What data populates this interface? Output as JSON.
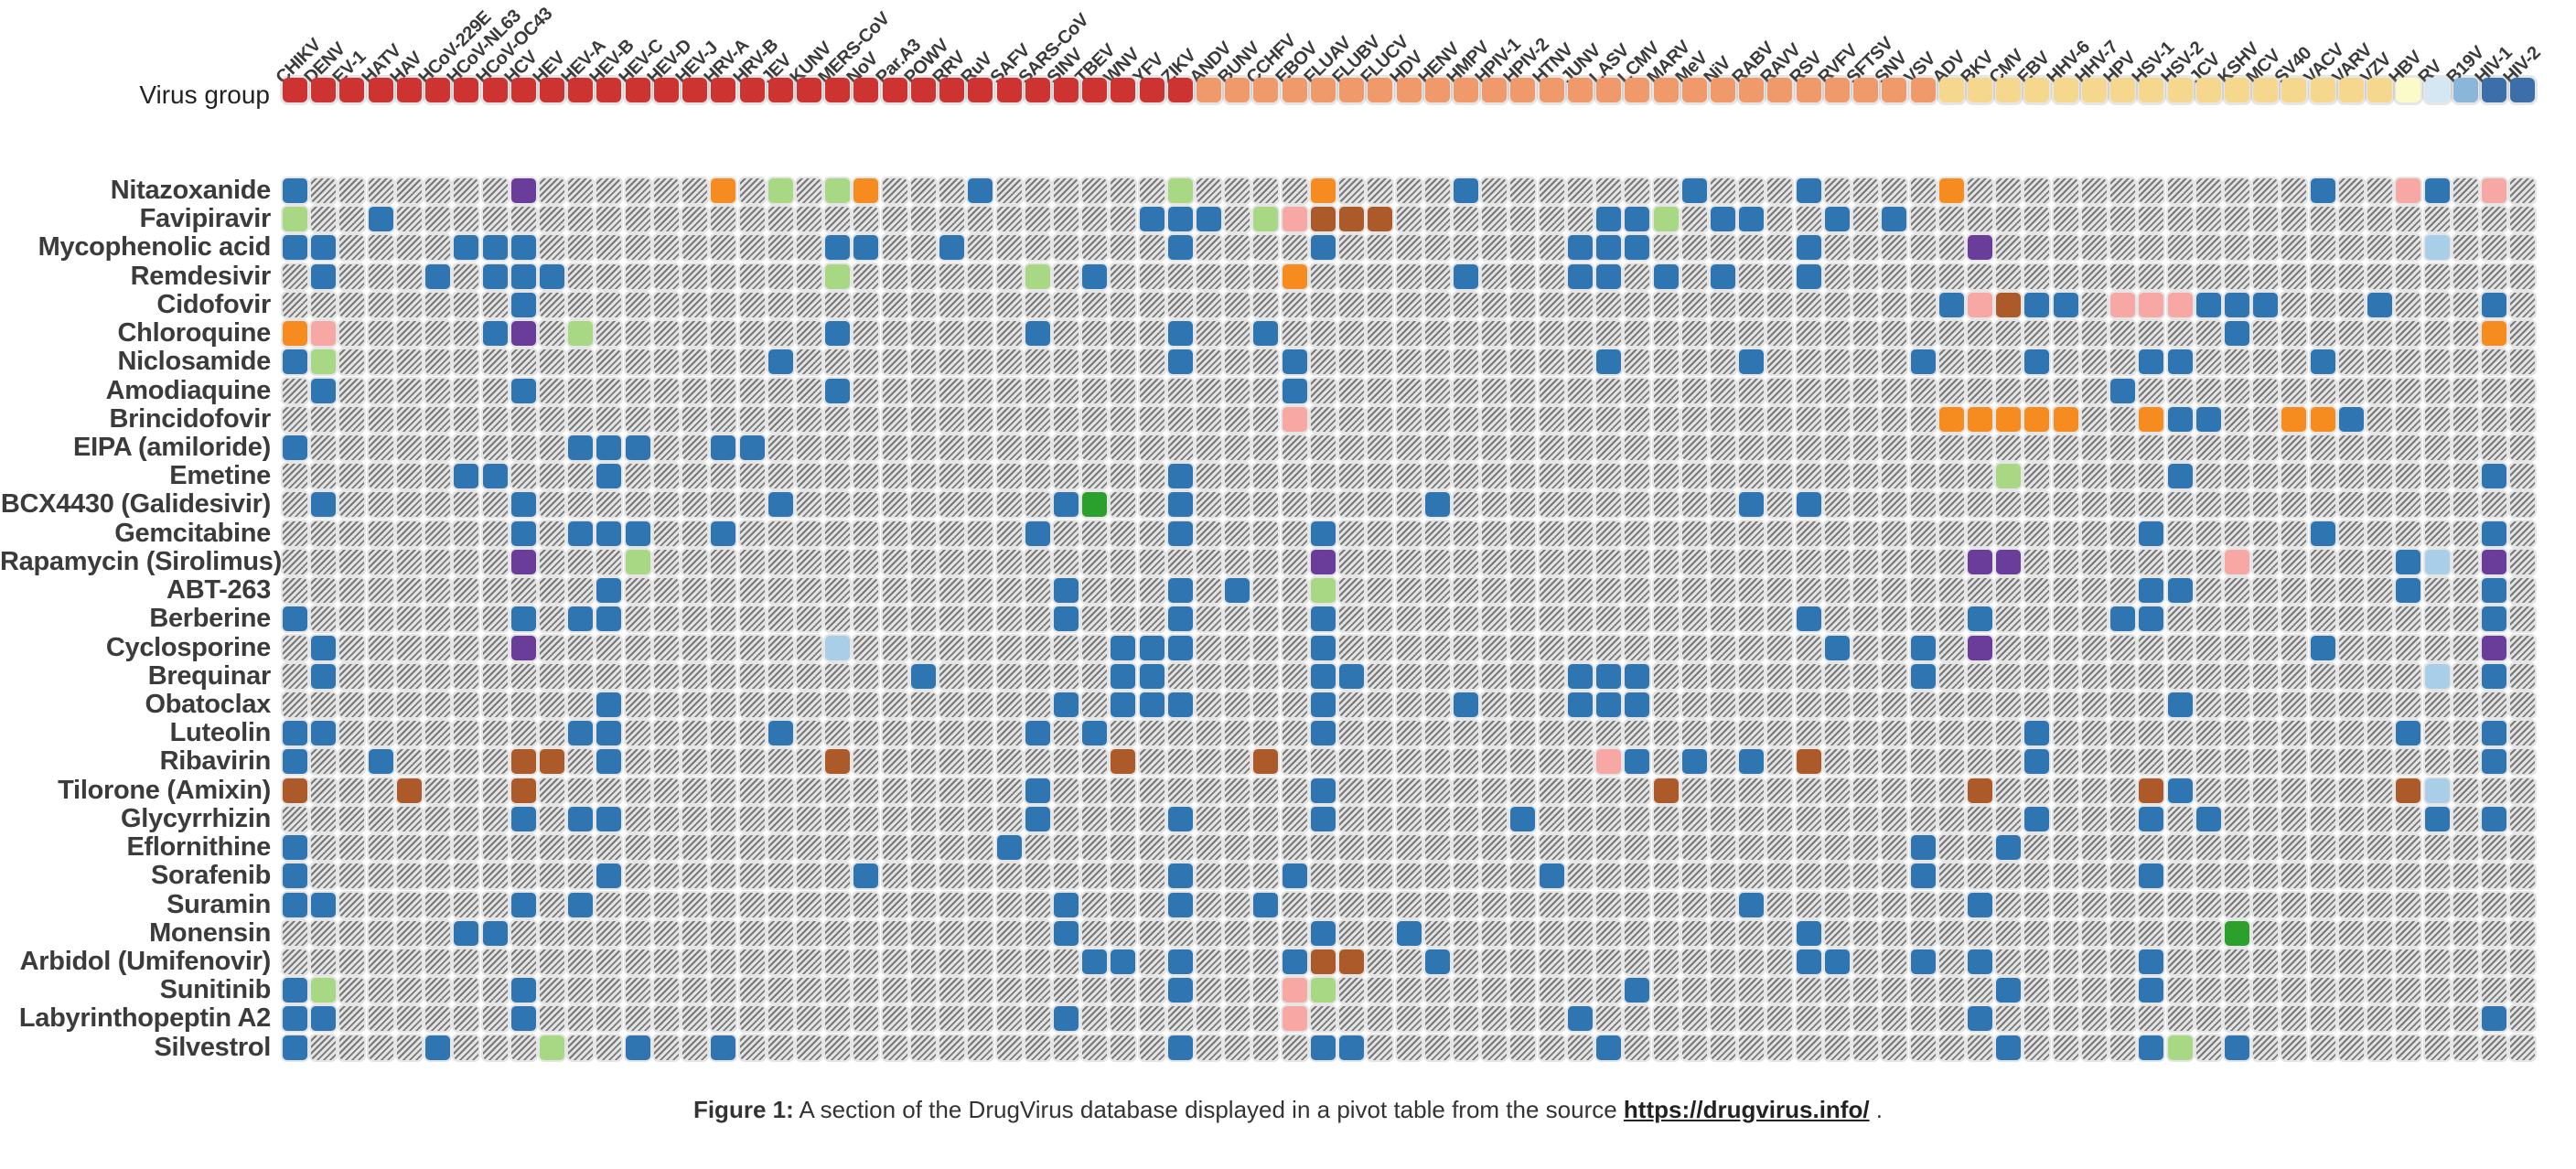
{
  "virus_group_label": "Virus group",
  "virus_group_colors": {
    "ssrna_pos": "#cd3431",
    "ssrna_neg": "#f0996b",
    "dsdna": "#f6d78e",
    "hbv_group": "#fafbc8",
    "rv_group": "#d5e7f2",
    "b19v_group": "#8ab6d9",
    "hiv_group": "#3c6fa9"
  },
  "cell_colors": {
    "B": "#2e75b1",
    "G": "#a8d884",
    "E": "#2ca02c",
    "O": "#f68b1f",
    "R": "#ad5a2b",
    "P": "#6a3d9a",
    "K": "#f7a8a4",
    "L": "#a9cfe8"
  },
  "columns": [
    {
      "label": "CHIKV",
      "group": "ssrna_pos"
    },
    {
      "label": "DENV",
      "group": "ssrna_pos"
    },
    {
      "label": "EV-1",
      "group": "ssrna_pos"
    },
    {
      "label": "HATV",
      "group": "ssrna_pos"
    },
    {
      "label": "HAV",
      "group": "ssrna_pos"
    },
    {
      "label": "HCoV-229E",
      "group": "ssrna_pos"
    },
    {
      "label": "HCoV-NL63",
      "group": "ssrna_pos"
    },
    {
      "label": "HCoV-OC43",
      "group": "ssrna_pos"
    },
    {
      "label": "HCV",
      "group": "ssrna_pos"
    },
    {
      "label": "HEV",
      "group": "ssrna_pos"
    },
    {
      "label": "HEV-A",
      "group": "ssrna_pos"
    },
    {
      "label": "HEV-B",
      "group": "ssrna_pos"
    },
    {
      "label": "HEV-C",
      "group": "ssrna_pos"
    },
    {
      "label": "HEV-D",
      "group": "ssrna_pos"
    },
    {
      "label": "HEV-J",
      "group": "ssrna_pos"
    },
    {
      "label": "HRV-A",
      "group": "ssrna_pos"
    },
    {
      "label": "HRV-B",
      "group": "ssrna_pos"
    },
    {
      "label": "JEV",
      "group": "ssrna_pos"
    },
    {
      "label": "KUNV",
      "group": "ssrna_pos"
    },
    {
      "label": "MERS-CoV",
      "group": "ssrna_pos"
    },
    {
      "label": "NoV",
      "group": "ssrna_pos"
    },
    {
      "label": "Par.A3",
      "group": "ssrna_pos"
    },
    {
      "label": "POWV",
      "group": "ssrna_pos"
    },
    {
      "label": "RRV",
      "group": "ssrna_pos"
    },
    {
      "label": "RuV",
      "group": "ssrna_pos"
    },
    {
      "label": "SAFV",
      "group": "ssrna_pos"
    },
    {
      "label": "SARS-CoV",
      "group": "ssrna_pos"
    },
    {
      "label": "SINV",
      "group": "ssrna_pos"
    },
    {
      "label": "TBEV",
      "group": "ssrna_pos"
    },
    {
      "label": "WNV",
      "group": "ssrna_pos"
    },
    {
      "label": "YFV",
      "group": "ssrna_pos"
    },
    {
      "label": "ZIKV",
      "group": "ssrna_pos"
    },
    {
      "label": "ANDV",
      "group": "ssrna_neg"
    },
    {
      "label": "BUNV",
      "group": "ssrna_neg"
    },
    {
      "label": "CCHFV",
      "group": "ssrna_neg"
    },
    {
      "label": "EBOV",
      "group": "ssrna_neg"
    },
    {
      "label": "FLUAV",
      "group": "ssrna_neg"
    },
    {
      "label": "FLUBV",
      "group": "ssrna_neg"
    },
    {
      "label": "FLUCV",
      "group": "ssrna_neg"
    },
    {
      "label": "HDV",
      "group": "ssrna_neg"
    },
    {
      "label": "HENV",
      "group": "ssrna_neg"
    },
    {
      "label": "HMPV",
      "group": "ssrna_neg"
    },
    {
      "label": "HPIV-1",
      "group": "ssrna_neg"
    },
    {
      "label": "HPIV-2",
      "group": "ssrna_neg"
    },
    {
      "label": "HTNV",
      "group": "ssrna_neg"
    },
    {
      "label": "JUNV",
      "group": "ssrna_neg"
    },
    {
      "label": "LASV",
      "group": "ssrna_neg"
    },
    {
      "label": "LCMV",
      "group": "ssrna_neg"
    },
    {
      "label": "MARV",
      "group": "ssrna_neg"
    },
    {
      "label": "MeV",
      "group": "ssrna_neg"
    },
    {
      "label": "NiV",
      "group": "ssrna_neg"
    },
    {
      "label": "RABV",
      "group": "ssrna_neg"
    },
    {
      "label": "RAVV",
      "group": "ssrna_neg"
    },
    {
      "label": "RSV",
      "group": "ssrna_neg"
    },
    {
      "label": "RVFV",
      "group": "ssrna_neg"
    },
    {
      "label": "SFTSV",
      "group": "ssrna_neg"
    },
    {
      "label": "SNV",
      "group": "ssrna_neg"
    },
    {
      "label": "VSV",
      "group": "ssrna_neg"
    },
    {
      "label": "ADV",
      "group": "dsdna"
    },
    {
      "label": "BKV",
      "group": "dsdna"
    },
    {
      "label": "CMV",
      "group": "dsdna"
    },
    {
      "label": "EBV",
      "group": "dsdna"
    },
    {
      "label": "HHV-6",
      "group": "dsdna"
    },
    {
      "label": "HHV-7",
      "group": "dsdna"
    },
    {
      "label": "HPV",
      "group": "dsdna"
    },
    {
      "label": "HSV-1",
      "group": "dsdna"
    },
    {
      "label": "HSV-2",
      "group": "dsdna"
    },
    {
      "label": "JCV",
      "group": "dsdna"
    },
    {
      "label": "KSHV",
      "group": "dsdna"
    },
    {
      "label": "MCV",
      "group": "dsdna"
    },
    {
      "label": "SV40",
      "group": "dsdna"
    },
    {
      "label": "VACV",
      "group": "dsdna"
    },
    {
      "label": "VARV",
      "group": "dsdna"
    },
    {
      "label": "VZV",
      "group": "dsdna"
    },
    {
      "label": "HBV",
      "group": "hbv_group"
    },
    {
      "label": "RV",
      "group": "rv_group"
    },
    {
      "label": "B19V",
      "group": "b19v_group"
    },
    {
      "label": "HIV-1",
      "group": "hiv_group"
    },
    {
      "label": "HIV-2",
      "group": "hiv_group"
    }
  ],
  "rows": [
    {
      "label": "Nitazoxanide",
      "cells": {
        "0": "B",
        "8": "P",
        "15": "O",
        "17": "G",
        "19": "G",
        "20": "O",
        "24": "B",
        "31": "G",
        "36": "O",
        "41": "B",
        "49": "B",
        "53": "B",
        "58": "O",
        "71": "B",
        "74": "K",
        "75": "B",
        "77": "K"
      }
    },
    {
      "label": "Favipiravir",
      "cells": {
        "0": "G",
        "3": "B",
        "30": "B",
        "31": "B",
        "32": "B",
        "34": "G",
        "35": "K",
        "36": "R",
        "37": "R",
        "38": "R",
        "46": "B",
        "47": "B",
        "48": "G",
        "50": "B",
        "51": "B",
        "54": "B",
        "56": "B"
      }
    },
    {
      "label": "Mycophenolic acid",
      "cells": {
        "0": "B",
        "1": "B",
        "6": "B",
        "7": "B",
        "8": "B",
        "19": "B",
        "20": "B",
        "23": "B",
        "31": "B",
        "36": "B",
        "45": "B",
        "46": "B",
        "47": "B",
        "53": "B",
        "59": "P",
        "75": "L"
      }
    },
    {
      "label": "Remdesivir",
      "cells": {
        "1": "B",
        "5": "B",
        "7": "B",
        "8": "B",
        "9": "B",
        "19": "G",
        "26": "G",
        "28": "B",
        "35": "O",
        "41": "B",
        "45": "B",
        "46": "B",
        "48": "B",
        "50": "B",
        "53": "B"
      }
    },
    {
      "label": "Cidofovir",
      "cells": {
        "8": "B",
        "58": "B",
        "59": "K",
        "60": "R",
        "61": "B",
        "62": "B",
        "64": "K",
        "65": "K",
        "66": "K",
        "67": "B",
        "68": "B",
        "69": "B",
        "73": "B",
        "77": "B"
      }
    },
    {
      "label": "Chloroquine",
      "cells": {
        "0": "O",
        "1": "K",
        "7": "B",
        "8": "P",
        "10": "G",
        "19": "B",
        "26": "B",
        "31": "B",
        "34": "B",
        "68": "B",
        "77": "O"
      }
    },
    {
      "label": "Niclosamide",
      "cells": {
        "0": "B",
        "1": "G",
        "17": "B",
        "31": "B",
        "35": "B",
        "46": "B",
        "51": "B",
        "57": "B",
        "61": "B",
        "65": "B",
        "66": "B",
        "71": "B"
      }
    },
    {
      "label": "Amodiaquine",
      "cells": {
        "1": "B",
        "8": "B",
        "19": "B",
        "35": "B",
        "64": "B"
      }
    },
    {
      "label": "Brincidofovir",
      "cells": {
        "35": "K",
        "58": "O",
        "59": "O",
        "60": "O",
        "61": "O",
        "62": "O",
        "65": "O",
        "66": "B",
        "67": "B",
        "70": "O",
        "71": "O",
        "72": "B"
      }
    },
    {
      "label": "EIPA (amiloride)",
      "cells": {
        "0": "B",
        "10": "B",
        "11": "B",
        "12": "B",
        "15": "B",
        "16": "B"
      }
    },
    {
      "label": "Emetine",
      "cells": {
        "6": "B",
        "7": "B",
        "11": "B",
        "31": "B",
        "60": "G",
        "66": "B",
        "77": "B"
      }
    },
    {
      "label": "BCX4430 (Galidesivir)",
      "cells": {
        "1": "B",
        "8": "B",
        "17": "B",
        "27": "B",
        "28": "E",
        "31": "B",
        "40": "B",
        "51": "B",
        "53": "B"
      }
    },
    {
      "label": "Gemcitabine",
      "cells": {
        "8": "B",
        "10": "B",
        "11": "B",
        "12": "B",
        "15": "B",
        "26": "B",
        "31": "B",
        "36": "B",
        "65": "B",
        "71": "B",
        "77": "B"
      }
    },
    {
      "label": "Rapamycin (Sirolimus)",
      "cells": {
        "8": "P",
        "12": "G",
        "36": "P",
        "59": "P",
        "60": "P",
        "68": "K",
        "74": "B",
        "75": "L",
        "77": "P"
      }
    },
    {
      "label": "ABT-263",
      "cells": {
        "11": "B",
        "27": "B",
        "31": "B",
        "33": "B",
        "36": "G",
        "65": "B",
        "66": "B",
        "74": "B",
        "77": "B"
      }
    },
    {
      "label": "Berberine",
      "cells": {
        "0": "B",
        "8": "B",
        "10": "B",
        "11": "B",
        "27": "B",
        "31": "B",
        "36": "B",
        "53": "B",
        "59": "B",
        "64": "B",
        "65": "B",
        "77": "B"
      }
    },
    {
      "label": "Cyclosporine",
      "cells": {
        "1": "B",
        "8": "P",
        "19": "L",
        "29": "B",
        "30": "B",
        "31": "B",
        "36": "B",
        "54": "B",
        "57": "B",
        "59": "P",
        "71": "B",
        "77": "P"
      }
    },
    {
      "label": "Brequinar",
      "cells": {
        "1": "B",
        "22": "B",
        "29": "B",
        "30": "B",
        "36": "B",
        "37": "B",
        "45": "B",
        "46": "B",
        "47": "B",
        "57": "B",
        "75": "L",
        "77": "B"
      }
    },
    {
      "label": "Obatoclax",
      "cells": {
        "11": "B",
        "27": "B",
        "29": "B",
        "30": "B",
        "31": "B",
        "36": "B",
        "41": "B",
        "45": "B",
        "46": "B",
        "47": "B",
        "66": "B"
      }
    },
    {
      "label": "Luteolin",
      "cells": {
        "0": "B",
        "1": "B",
        "10": "B",
        "11": "B",
        "17": "B",
        "26": "B",
        "28": "B",
        "36": "B",
        "61": "B",
        "74": "B",
        "77": "B"
      }
    },
    {
      "label": "Ribavirin",
      "cells": {
        "0": "B",
        "3": "B",
        "8": "R",
        "9": "R",
        "11": "B",
        "19": "R",
        "29": "R",
        "34": "R",
        "46": "K",
        "47": "B",
        "49": "B",
        "51": "B",
        "53": "R",
        "61": "B",
        "77": "B"
      }
    },
    {
      "label": "Tilorone (Amixin)",
      "cells": {
        "0": "R",
        "4": "R",
        "8": "R",
        "26": "B",
        "36": "B",
        "48": "R",
        "59": "R",
        "65": "R",
        "66": "B",
        "74": "R",
        "75": "L"
      }
    },
    {
      "label": "Glycyrrhizin",
      "cells": {
        "8": "B",
        "10": "B",
        "11": "B",
        "26": "B",
        "31": "B",
        "36": "B",
        "43": "B",
        "61": "B",
        "65": "B",
        "67": "B",
        "75": "B",
        "77": "B"
      }
    },
    {
      "label": "Eflornithine",
      "cells": {
        "0": "B",
        "25": "B",
        "57": "B",
        "60": "B"
      }
    },
    {
      "label": "Sorafenib",
      "cells": {
        "0": "B",
        "11": "B",
        "20": "B",
        "31": "B",
        "35": "B",
        "44": "B",
        "57": "B",
        "65": "B"
      }
    },
    {
      "label": "Suramin",
      "cells": {
        "0": "B",
        "1": "B",
        "8": "B",
        "10": "B",
        "27": "B",
        "31": "B",
        "34": "B",
        "51": "B",
        "59": "B"
      }
    },
    {
      "label": "Monensin",
      "cells": {
        "6": "B",
        "7": "B",
        "27": "B",
        "36": "B",
        "39": "B",
        "53": "B",
        "68": "E"
      }
    },
    {
      "label": "Arbidol (Umifenovir)",
      "cells": {
        "28": "B",
        "29": "B",
        "31": "B",
        "35": "B",
        "36": "R",
        "37": "R",
        "40": "B",
        "53": "B",
        "54": "B",
        "57": "B",
        "59": "B",
        "65": "B"
      }
    },
    {
      "label": "Sunitinib",
      "cells": {
        "0": "B",
        "1": "G",
        "8": "B",
        "31": "B",
        "35": "K",
        "36": "G",
        "47": "B",
        "60": "B",
        "65": "B"
      }
    },
    {
      "label": "Labyrinthopeptin A2",
      "cells": {
        "0": "B",
        "1": "B",
        "8": "B",
        "27": "B",
        "35": "K",
        "45": "B",
        "59": "B",
        "77": "B"
      }
    },
    {
      "label": "Silvestrol",
      "cells": {
        "0": "B",
        "5": "B",
        "9": "G",
        "12": "B",
        "15": "B",
        "31": "B",
        "36": "B",
        "37": "B",
        "46": "B",
        "60": "B",
        "65": "B",
        "66": "G",
        "68": "B"
      }
    }
  ],
  "caption": {
    "figure_label": "Figure 1:",
    "text_before_link": " A section of the DrugVirus database displayed in a pivot table from the source ",
    "link": "https://drugvirus.info/",
    "text_after_link": " ."
  }
}
